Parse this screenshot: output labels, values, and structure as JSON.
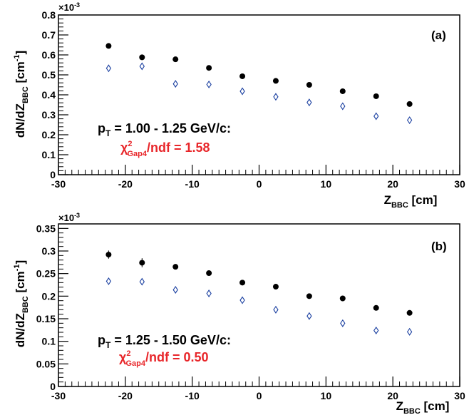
{
  "chart_data": [
    {
      "type": "scatter",
      "panel_label": "(a)",
      "exponent_label": "×10",
      "exponent_power": "-3",
      "xlabel": {
        "main": "Z",
        "sub": "BBC",
        "unit": " [cm]"
      },
      "ylabel": {
        "pre": "dN/dZ",
        "sub": "BBC",
        "unit": " [cm",
        "unit_sup": "-1",
        "unit_end": "]"
      },
      "xlim": [
        -30,
        30
      ],
      "ylim": [
        0,
        0.8
      ],
      "x_ticks": [
        -30,
        -20,
        -10,
        0,
        10,
        20,
        30
      ],
      "y_ticks": [
        0,
        0.1,
        0.2,
        0.3,
        0.4,
        0.5,
        0.6,
        0.7,
        0.8
      ],
      "y_tick_labels": [
        "0",
        "0.1",
        "0.2",
        "0.3",
        "0.4",
        "0.5",
        "0.6",
        "0.7",
        "0.8"
      ],
      "annotation": {
        "pt_pre": "p",
        "pt_sub": "T",
        "pt_text": " = 1.00 - 1.25 GeV/c:",
        "chi_sym": "χ",
        "chi_sup": "2",
        "chi_sub": "Gap4",
        "chi_text": "/ndf = 1.58"
      },
      "x": [
        -22.5,
        -17.5,
        -12.5,
        -7.5,
        -2.5,
        2.5,
        7.5,
        12.5,
        17.5,
        22.5
      ],
      "series": [
        {
          "marker": "filled-circle",
          "color": "#000000",
          "values": [
            0.645,
            0.588,
            0.578,
            0.535,
            0.493,
            0.47,
            0.45,
            0.418,
            0.393,
            0.354
          ]
        },
        {
          "marker": "open-diamond",
          "color": "#1a3fa0",
          "values": [
            0.533,
            0.543,
            0.455,
            0.452,
            0.418,
            0.39,
            0.362,
            0.343,
            0.293,
            0.273
          ]
        }
      ]
    },
    {
      "type": "scatter",
      "panel_label": "(b)",
      "exponent_label": "×10",
      "exponent_power": "-3",
      "xlabel": {
        "main": "Z",
        "sub": "BBC",
        "unit": " [cm]"
      },
      "ylabel": {
        "pre": "dN/dZ",
        "sub": "BBC",
        "unit": " [cm",
        "unit_sup": "-1",
        "unit_end": "]"
      },
      "xlim": [
        -30,
        30
      ],
      "ylim": [
        0,
        0.36
      ],
      "x_ticks": [
        -30,
        -20,
        -10,
        0,
        10,
        20,
        30
      ],
      "y_ticks": [
        0,
        0.05,
        0.1,
        0.15,
        0.2,
        0.25,
        0.3,
        0.35
      ],
      "y_tick_labels": [
        "0",
        "0.05",
        "0.1",
        "0.15",
        "0.2",
        "0.25",
        "0.3",
        "0.35"
      ],
      "annotation": {
        "pt_pre": "p",
        "pt_sub": "T",
        "pt_text": " = 1.25 - 1.50 GeV/c:",
        "chi_sym": "χ",
        "chi_sup": "2",
        "chi_sub": "Gap4",
        "chi_text": "/ndf = 0.50"
      },
      "x": [
        -22.5,
        -17.5,
        -12.5,
        -7.5,
        -2.5,
        2.5,
        7.5,
        12.5,
        17.5,
        22.5
      ],
      "series": [
        {
          "marker": "filled-circle",
          "color": "#000000",
          "values": [
            0.292,
            0.274,
            0.265,
            0.251,
            0.23,
            0.221,
            0.2,
            0.195,
            0.174,
            0.163
          ],
          "errors": [
            0.009,
            0.01,
            0.005,
            0.004,
            0.004,
            0.004,
            0.004,
            0.004,
            0.004,
            0.004
          ]
        },
        {
          "marker": "open-diamond",
          "color": "#1a3fa0",
          "values": [
            0.233,
            0.232,
            0.214,
            0.206,
            0.191,
            0.17,
            0.156,
            0.14,
            0.124,
            0.121
          ]
        }
      ]
    }
  ],
  "colors": {
    "annotation_chi": "#e8262a",
    "axis": "#000000"
  }
}
